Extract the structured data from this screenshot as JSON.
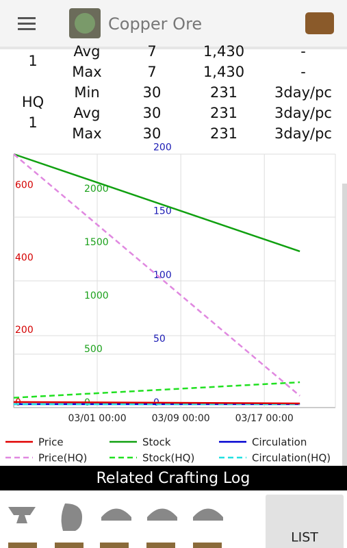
{
  "app_bar": {
    "title": "Copper Ore"
  },
  "table": {
    "groups": [
      "1",
      "HQ",
      "1"
    ],
    "rows": [
      [
        "Avg",
        "7",
        "1,430",
        "-"
      ],
      [
        "Max",
        "7",
        "1,430",
        "-"
      ],
      [
        "Min",
        "30",
        "231",
        "3day/pc"
      ],
      [
        "Avg",
        "30",
        "231",
        "3day/pc"
      ],
      [
        "Max",
        "30",
        "231",
        "3day/pc"
      ]
    ]
  },
  "chart_data": {
    "type": "line",
    "x": [
      0,
      27.4
    ],
    "xlim": [
      0,
      30.8
    ],
    "xticks": [
      {
        "value": 8,
        "label": "03/01 00:00"
      },
      {
        "value": 16,
        "label": "03/09 00:00"
      },
      {
        "value": 24,
        "label": "03/17 00:00"
      }
    ],
    "ylim": [
      0,
      690
    ],
    "yticks": [
      0,
      200,
      400,
      600
    ],
    "ycolor": "#d40000",
    "y2lim": [
      0,
      2340
    ],
    "y2ticks": [
      0,
      500,
      1000,
      1500,
      2000
    ],
    "y2color": "#1aa01a",
    "y3lim": [
      0,
      196
    ],
    "y3ticks": [
      0,
      50,
      100,
      150,
      200
    ],
    "y3color": "#1a1ab4",
    "grid": true,
    "series": [
      {
        "name": "Price",
        "color": "#e00000",
        "dash": false,
        "axis": "y",
        "values": [
          6,
          2
        ]
      },
      {
        "name": "Stock",
        "color": "#10a010",
        "dash": false,
        "axis": "y2",
        "values": [
          2340,
          1430
        ]
      },
      {
        "name": "Circulation",
        "color": "#0000d0",
        "dash": false,
        "axis": "y3",
        "values": [
          0,
          0
        ]
      },
      {
        "name": "Price(HQ)",
        "color": "#e088e0",
        "dash": true,
        "axis": "y",
        "values": [
          690,
          23
        ]
      },
      {
        "name": "Stock(HQ)",
        "color": "#20e020",
        "dash": true,
        "axis": "y2",
        "values": [
          60,
          205
        ]
      },
      {
        "name": "Circulation(HQ)",
        "color": "#20e0e0",
        "dash": true,
        "axis": "y3",
        "values": [
          0,
          0
        ]
      }
    ]
  },
  "section": {
    "title": "Related Crafting Log"
  },
  "button": {
    "label": "LIST"
  }
}
